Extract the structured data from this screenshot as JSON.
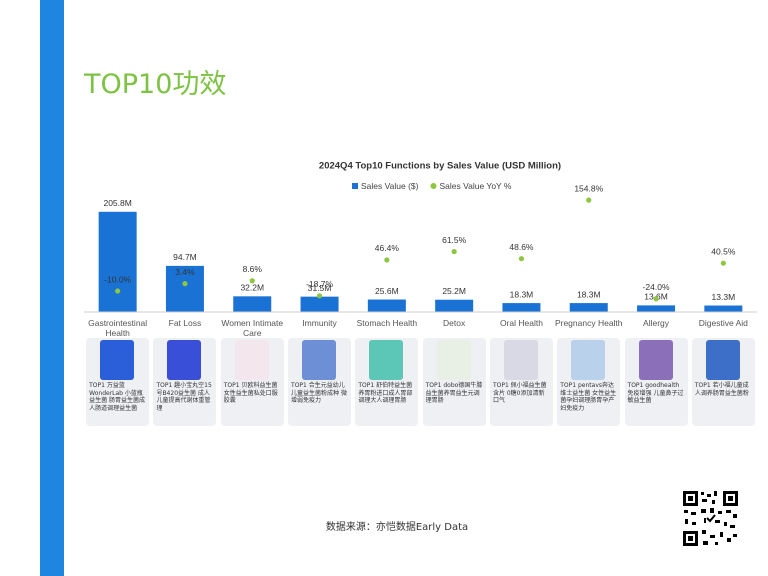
{
  "title": "TOP10功效",
  "source": "数据来源：亦恺数据Early Data",
  "products": [
    "TOP1 万益蓝WonderLab 小蓝瓶益生菌 肠胃益生菌成人肠道调理益生菌",
    "TOP1 趣小宝丸空15号B420益生菌 成人儿童提高代谢体重管理",
    "TOP1 贝欧科益生菌女性益生菌私处口服胶囊",
    "TOP1 合生元益幼儿儿童益生菌粉成种 微增弱免疫力",
    "TOP1 舒伯特益生菌养胃粉进口成人胃部调理大人调理胃肠",
    "TOP1 dobo德国牛膝益生菌养胃益生元调理胃肠",
    "TOP1 佩小福益生菌含片 0糖0添加清新口气",
    "TOP1 pentavs奔达维士益生菌 女性益生菌孕妇调理肠胃孕产妇免疫力",
    "TOP1 goodhealth 免疫增强 儿童鼻子过敏益生菌",
    "TOP1 若小福儿童成人调养肠胃益生菌粉"
  ],
  "chart_data": {
    "type": "bar",
    "title": "2024Q4 Top10 Functions by Sales Value (USD Million)",
    "categories": [
      "Gastrointestinal Health",
      "Fat Loss",
      "Women Intimate Care",
      "Immunity",
      "Stomach Health",
      "Detox",
      "Oral Health",
      "Pregnancy Health",
      "Allergy",
      "Digestive Aid"
    ],
    "ylim": [
      0,
      230
    ],
    "y2lim": [
      -48,
      155
    ],
    "series": [
      {
        "name": "Sales Value ($)",
        "type": "bar",
        "color": "#1a73d4",
        "values": [
          205.8,
          94.7,
          32.2,
          31.5,
          25.6,
          25.2,
          18.3,
          18.3,
          13.6,
          13.3
        ],
        "value_labels": [
          "205.8M",
          "94.7M",
          "32.2M",
          "31.5M",
          "25.6M",
          "25.2M",
          "18.3M",
          "18.3M",
          "13.6M",
          "13.3M"
        ]
      },
      {
        "name": "Sales Value YoY %",
        "type": "scatter",
        "axis": "y2",
        "color": "#8dc63f",
        "values": [
          -10.0,
          3.4,
          8.6,
          -18.7,
          46.4,
          61.5,
          48.6,
          154.8,
          -24.0,
          40.5
        ],
        "value_labels": [
          "-10.0%",
          "3.4%",
          "8.6%",
          "-18.7%",
          "46.4%",
          "61.5%",
          "48.6%",
          "154.8%",
          "-24.0%",
          "40.5%"
        ]
      }
    ]
  }
}
